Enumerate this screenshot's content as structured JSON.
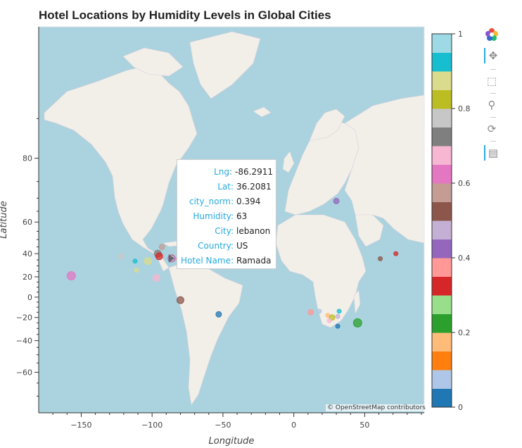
{
  "chart_data": {
    "type": "scatter",
    "title": "Hotel Locations by Humidity Levels in Global Cities",
    "xlabel": "Longitude",
    "ylabel": "Latitude",
    "xlim": [
      -180,
      92
    ],
    "ylim": [
      -75,
      89
    ],
    "xticks": [
      "−150",
      "−100",
      "−50",
      "0",
      "50"
    ],
    "xtick_values": [
      -150,
      -100,
      -50,
      0,
      50
    ],
    "yticks": [
      "80",
      "60",
      "40",
      "20",
      "0",
      "−20",
      "−40",
      "−60"
    ],
    "ytick_values": [
      80,
      60,
      40,
      20,
      0,
      -20,
      -40,
      -60
    ],
    "colorbar": {
      "range": [
        0,
        1
      ],
      "ticks": [
        "0",
        "0.2",
        "0.4",
        "0.6",
        "0.8",
        "1"
      ],
      "tick_values": [
        0,
        0.2,
        0.4,
        0.6,
        0.8,
        1
      ],
      "palette": [
        "#1f77b4",
        "#aec7e8",
        "#ff7f0e",
        "#ffbb78",
        "#2ca02c",
        "#98df8a",
        "#d62728",
        "#ff9896",
        "#9467bd",
        "#c5b0d5",
        "#8c564b",
        "#c49c94",
        "#e377c2",
        "#f7b6d2",
        "#7f7f7f",
        "#c7c7c7",
        "#bcbd22",
        "#dbdb8d",
        "#17becf",
        "#9edae5"
      ]
    },
    "points": [
      {
        "lng": -157,
        "lat": 21,
        "color": "#e377c2",
        "size": 6
      },
      {
        "lng": -122,
        "lat": 38,
        "color": "#c7c7c7",
        "size": 4
      },
      {
        "lng": -112,
        "lat": 34,
        "color": "#17becf",
        "size": 3
      },
      {
        "lng": -111,
        "lat": 26,
        "color": "#dbdb8d",
        "size": 3
      },
      {
        "lng": -103,
        "lat": 34,
        "color": "#dbdb8d",
        "size": 5
      },
      {
        "lng": -96,
        "lat": 40,
        "color": "#7f7f7f",
        "size": 5
      },
      {
        "lng": -95,
        "lat": 38,
        "color": "#d62728",
        "size": 5
      },
      {
        "lng": -93,
        "lat": 45,
        "color": "#c49c94",
        "size": 4
      },
      {
        "lng": -86,
        "lat": 37,
        "color": "#ff7f0e",
        "size": 4
      },
      {
        "lng": -85,
        "lat": 36,
        "color": "#ff9896",
        "size": 4
      },
      {
        "lng": -97,
        "lat": 19,
        "color": "#f7b6d2",
        "size": 5
      },
      {
        "lng": -80,
        "lat": -3,
        "color": "#8c564b",
        "size": 5
      },
      {
        "lng": -53,
        "lat": -17,
        "color": "#1f77b4",
        "size": 4
      },
      {
        "lng": 30,
        "lat": 69,
        "color": "#9467bd",
        "size": 4
      },
      {
        "lng": 72,
        "lat": 40,
        "color": "#d62728",
        "size": 3
      },
      {
        "lng": 61,
        "lat": 36,
        "color": "#8c564b",
        "size": 3
      },
      {
        "lng": 12,
        "lat": -15,
        "color": "#ff9896",
        "size": 4
      },
      {
        "lng": 18,
        "lat": -14,
        "color": "#aec7e8",
        "size": 3
      },
      {
        "lng": 24,
        "lat": -18,
        "color": "#ffbb78",
        "size": 3
      },
      {
        "lng": 27,
        "lat": -20,
        "color": "#bcbd22",
        "size": 4
      },
      {
        "lng": 25,
        "lat": -23,
        "color": "#f7b6d2",
        "size": 3
      },
      {
        "lng": 32,
        "lat": -14,
        "color": "#17becf",
        "size": 3
      },
      {
        "lng": 31,
        "lat": -19,
        "color": "#c5b0d5",
        "size": 3
      },
      {
        "lng": 31,
        "lat": -28,
        "color": "#1f77b4",
        "size": 3
      },
      {
        "lng": 45,
        "lat": -25,
        "color": "#2ca02c",
        "size": 6
      }
    ],
    "hovered_point": {
      "lng": -86.2911,
      "lat": 36.2081
    }
  },
  "tooltip": {
    "rows": [
      {
        "key": "Lng:",
        "value": "-86.2911"
      },
      {
        "key": "Lat:",
        "value": "36.2081"
      },
      {
        "key": "city_norm:",
        "value": "0.394"
      },
      {
        "key": "Humidity:",
        "value": "63"
      },
      {
        "key": "City:",
        "value": "lebanon"
      },
      {
        "key": "Country:",
        "value": "US"
      },
      {
        "key": "Hotel Name:",
        "value": "Ramada"
      }
    ]
  },
  "attribution": "© OpenStreetMap contributors",
  "toolbar": [
    "bokeh-logo-icon",
    "pan-icon",
    "box-zoom-icon",
    "wheel-zoom-icon",
    "reset-icon",
    "hover-icon"
  ],
  "colors": {
    "ocean": "#aad3df",
    "land": "#f2efe9",
    "accent": "#26aae1"
  }
}
